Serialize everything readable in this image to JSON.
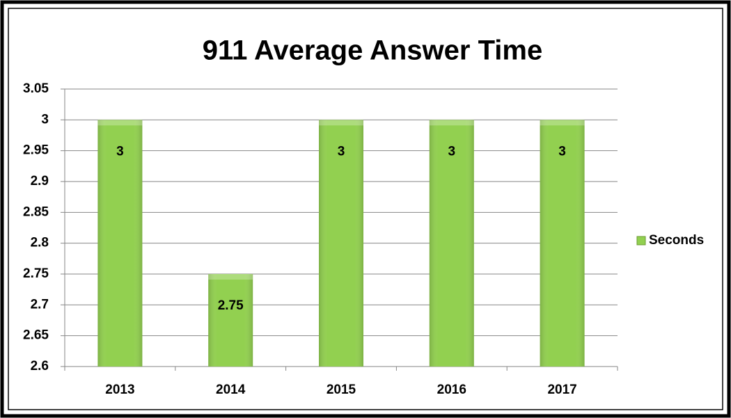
{
  "chart_data": {
    "type": "bar",
    "title": "911 Average Answer Time",
    "categories": [
      "2013",
      "2014",
      "2015",
      "2016",
      "2017"
    ],
    "series": [
      {
        "name": "Seconds",
        "color": "#92d050",
        "values": [
          3,
          2.75,
          3,
          3,
          3
        ]
      }
    ],
    "ylim": [
      2.6,
      3.05
    ],
    "yticks": [
      2.6,
      2.65,
      2.7,
      2.75,
      2.8,
      2.85,
      2.9,
      2.95,
      3,
      3.05
    ],
    "grid": true,
    "legend": "right"
  }
}
